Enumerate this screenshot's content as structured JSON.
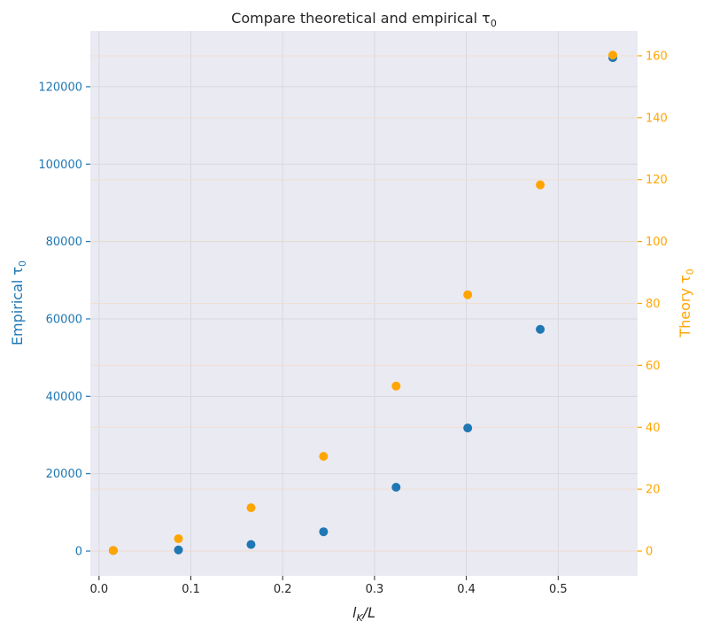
{
  "chart_data": {
    "type": "scatter",
    "title": "Compare theoretical and empirical τ",
    "title_subscript": "0",
    "xlabel_main": "l",
    "xlabel_sub": "K",
    "xlabel_tail": "/L",
    "ylabel_left": "Empirical τ",
    "ylabel_left_sub": "0",
    "ylabel_right": "Theory τ",
    "ylabel_right_sub": "0",
    "xlim": [
      -0.0095,
      0.5865
    ],
    "ylim_left": [
      -6400,
      134400
    ],
    "ylim_right": [
      -8,
      168
    ],
    "x_ticks": [
      0.0,
      0.1,
      0.2,
      0.3,
      0.4,
      0.5
    ],
    "x_tick_labels": [
      "0.0",
      "0.1",
      "0.2",
      "0.3",
      "0.4",
      "0.5"
    ],
    "y_left_ticks": [
      0,
      20000,
      40000,
      60000,
      80000,
      100000,
      120000
    ],
    "y_left_tick_labels": [
      "0",
      "20000",
      "40000",
      "60000",
      "80000",
      "100000",
      "120000"
    ],
    "y_right_ticks": [
      0,
      20,
      40,
      60,
      80,
      100,
      120,
      140,
      160
    ],
    "y_right_tick_labels": [
      "0",
      "20",
      "40",
      "60",
      "80",
      "100",
      "120",
      "140",
      "160"
    ],
    "grid": true,
    "colors": {
      "empirical": "#1f77b4",
      "theory": "#ffa500",
      "plot_background": "#eaeaf2",
      "grid": "#dcdce6",
      "text": "#262626"
    },
    "series": [
      {
        "axis": "left",
        "x": [
          0.0155,
          0.0865,
          0.1655,
          0.2445,
          0.3235,
          0.4015,
          0.4805,
          0.5595
        ],
        "y": [
          150,
          300,
          1700,
          5000,
          16500,
          31800,
          57300,
          127500
        ]
      },
      {
        "axis": "right",
        "x": [
          0.0155,
          0.0865,
          0.1655,
          0.2445,
          0.3235,
          0.4015,
          0.4805,
          0.5595
        ],
        "y": [
          0.2,
          4.0,
          14.0,
          30.6,
          53.3,
          82.8,
          118.3,
          160.2
        ]
      }
    ]
  }
}
